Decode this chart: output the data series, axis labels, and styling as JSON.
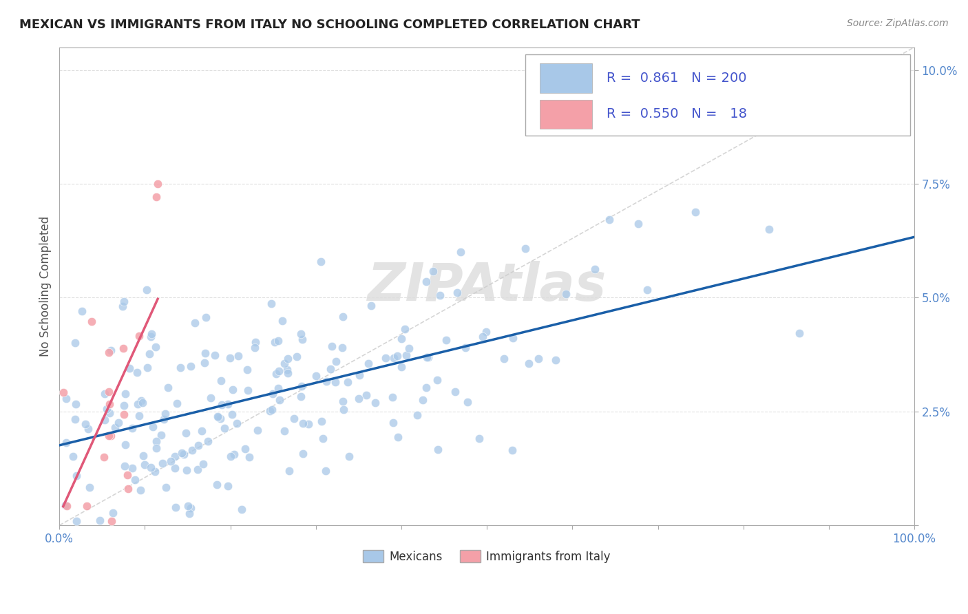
{
  "title": "MEXICAN VS IMMIGRANTS FROM ITALY NO SCHOOLING COMPLETED CORRELATION CHART",
  "source_text": "Source: ZipAtlas.com",
  "ylabel": "No Schooling Completed",
  "xlim": [
    0.0,
    1.0
  ],
  "ylim": [
    0.0,
    0.105
  ],
  "legend1_R": "0.861",
  "legend1_N": "200",
  "legend2_R": "0.550",
  "legend2_N": "18",
  "blue_color": "#a8c8e8",
  "pink_color": "#f4a0a8",
  "blue_line_color": "#1a5fa8",
  "pink_line_color": "#e05878",
  "ref_line_color": "#cccccc",
  "watermark": "ZIPAtlas",
  "watermark_color": "#cccccc",
  "title_fontsize": 13,
  "background_color": "#ffffff",
  "seed": 42,
  "n_blue": 200,
  "n_pink": 18,
  "grid_color": "#dddddd",
  "tick_color": "#5588cc",
  "legend_text_color": "#4455cc"
}
